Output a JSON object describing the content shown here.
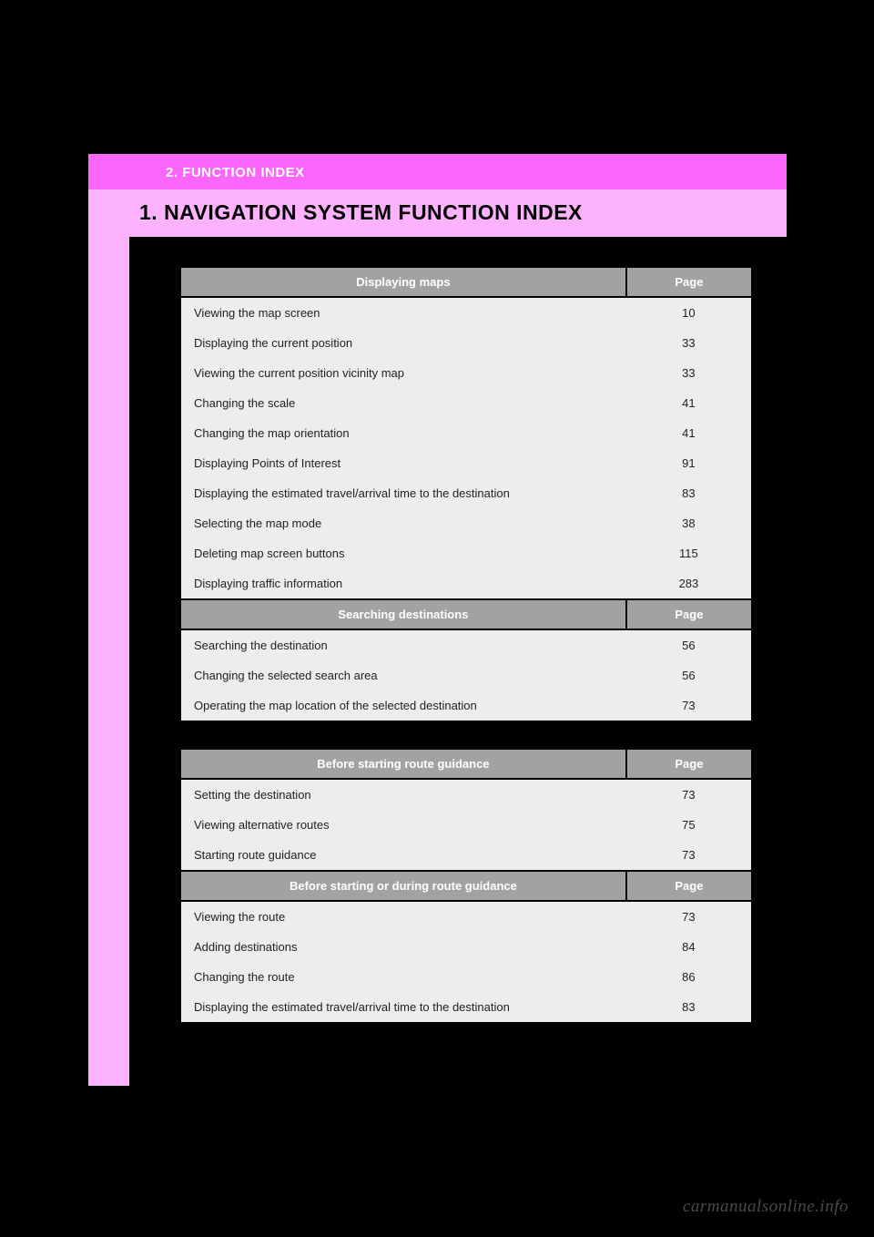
{
  "header": {
    "section_label": "2. FUNCTION INDEX",
    "title": "1. NAVIGATION SYSTEM FUNCTION INDEX"
  },
  "colors": {
    "band_bright": "#fb66fb",
    "band_light": "#fdb2fd",
    "table_header_bg": "#a2a2a2",
    "table_header_fg": "#ffffff",
    "table_row_bg": "#ededed",
    "page_bg": "#000000"
  },
  "column_labels": {
    "desc": "",
    "page": "Page"
  },
  "blocks": [
    {
      "sections": [
        {
          "title": "Displaying maps",
          "rows": [
            {
              "desc": "Viewing the map screen",
              "page": "10"
            },
            {
              "desc": "Displaying the current position",
              "page": "33"
            },
            {
              "desc": "Viewing the current position vicinity map",
              "page": "33"
            },
            {
              "desc": "Changing the scale",
              "page": "41"
            },
            {
              "desc": "Changing the map orientation",
              "page": "41"
            },
            {
              "desc": "Displaying Points of Interest",
              "page": "91"
            },
            {
              "desc": "Displaying the estimated travel/arrival time to the destination",
              "page": "83"
            },
            {
              "desc": "Selecting the map mode",
              "page": "38"
            },
            {
              "desc": "Deleting map screen buttons",
              "page": "115"
            },
            {
              "desc": "Displaying traffic information",
              "page": "283"
            }
          ]
        },
        {
          "title": "Searching destinations",
          "rows": [
            {
              "desc": "Searching the destination",
              "page": "56"
            },
            {
              "desc": "Changing the selected search area",
              "page": "56"
            },
            {
              "desc": "Operating the map location of the selected destination",
              "page": "73"
            }
          ]
        }
      ]
    },
    {
      "sections": [
        {
          "title": "Before starting route guidance",
          "rows": [
            {
              "desc": "Setting the destination",
              "page": "73"
            },
            {
              "desc": "Viewing alternative routes",
              "page": "75"
            },
            {
              "desc": "Starting route guidance",
              "page": "73"
            }
          ]
        },
        {
          "title": "Before starting or during route guidance",
          "rows": [
            {
              "desc": "Viewing the route",
              "page": "73"
            },
            {
              "desc": "Adding destinations",
              "page": "84"
            },
            {
              "desc": "Changing the route",
              "page": "86"
            },
            {
              "desc": "Displaying the estimated travel/arrival time to the destination",
              "page": "83"
            }
          ]
        }
      ]
    }
  ],
  "watermark": "carmanualsonline.info"
}
